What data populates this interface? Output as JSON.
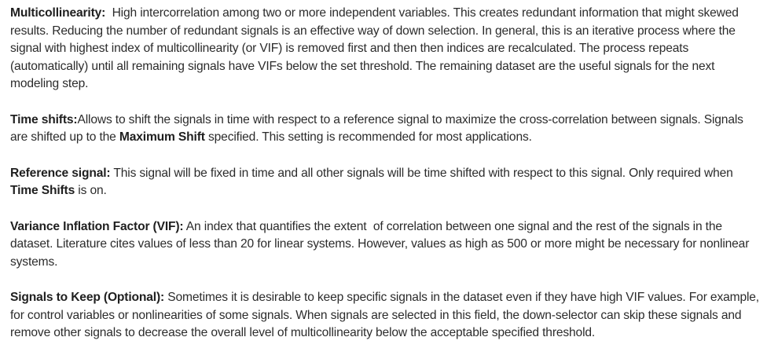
{
  "paragraphs": {
    "multicollinearity": {
      "term": "Multicollinearity:",
      "text": "  High intercorrelation among two or more independent variables. This creates redundant information that might skewed results. Reducing the number of redundant signals is an effective way of down selection. In general, this is an iterative process where the signal with highest index of multicollinearity (or VIF) is removed first and then then indices are recalculated. The process repeats (automatically) until all remaining signals have VIFs below the set threshold. The remaining dataset are the useful signals for the next modeling step."
    },
    "time_shifts": {
      "term": "Time shifts:",
      "text_before": "Allows to shift the signals in time with respect to a reference signal to maximize the cross-correlation between signals. Signals are shifted up to the ",
      "emphasis": "Maximum Shift",
      "text_after": " specified. This setting is recommended for most applications."
    },
    "reference_signal": {
      "term": "Reference signal:",
      "text_before": " This signal will be fixed in time and all other signals will be time shifted with respect to this signal. Only required when ",
      "emphasis": "Time Shifts",
      "text_after": " is on."
    },
    "vif": {
      "term": "Variance Inflation Factor (VIF):",
      "text": " An index that quantifies the extent  of correlation between one signal and the rest of the signals in the dataset. Literature cites values of less than 20 for linear systems. However, values as high as 500 or more might be necessary for nonlinear systems."
    },
    "signals_to_keep": {
      "term": "Signals to Keep (Optional):",
      "text": " Sometimes it is desirable to keep specific signals in the dataset even if they have high VIF values. For example, for control variables or nonlinearities of some signals. When signals are selected in this field, the down-selector can skip these signals and remove other signals to decrease the overall level of multicollinearity below the acceptable specified threshold."
    }
  }
}
